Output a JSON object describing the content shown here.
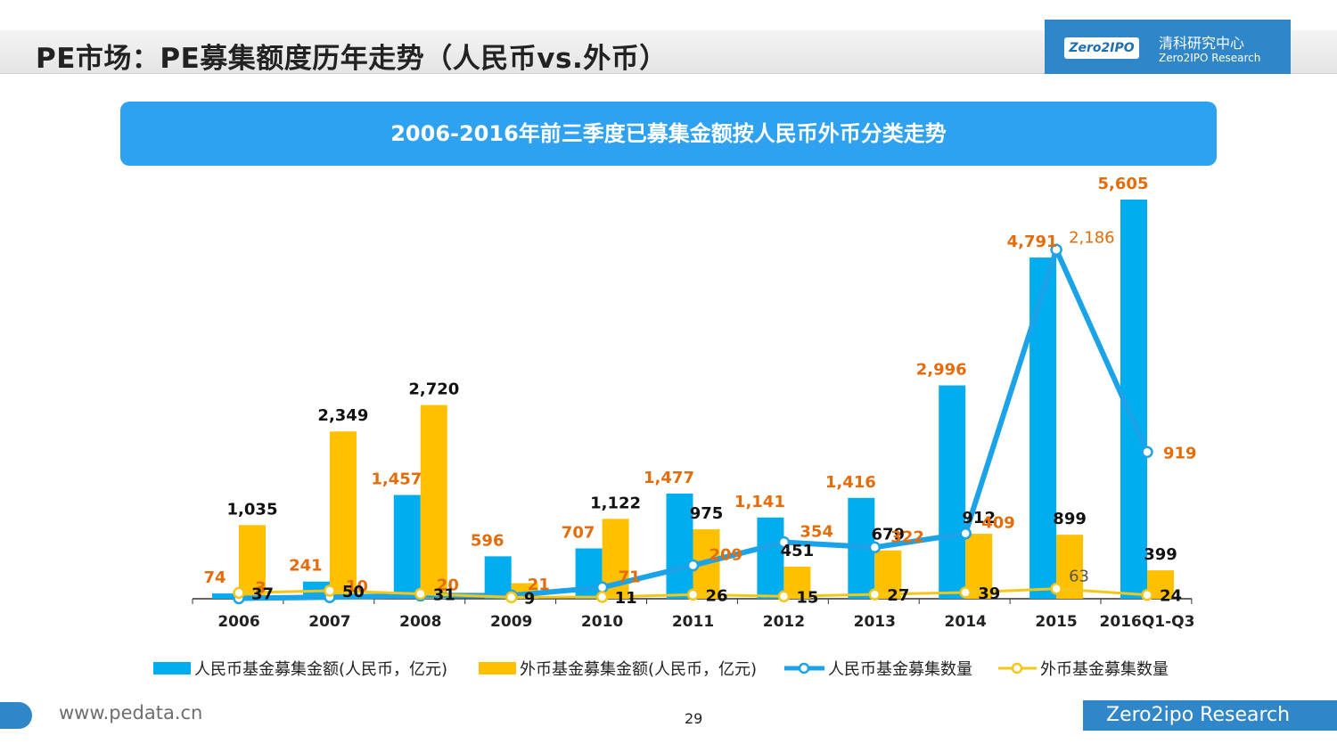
{
  "header": {
    "title": "PE市场：PE募集额度历年走势（人民币vs.外币）",
    "logo_badge": "Zero2IPO",
    "logo_cn": "清科研究中心",
    "logo_en": "Zero2IPO Research"
  },
  "footer": {
    "url": "www.pedata.cn",
    "page_number": "29",
    "brand": "Zero2ipo Research"
  },
  "colors": {
    "rmb": "#00aeef",
    "fx": "#ffc000",
    "fx_label": "#e46c0a",
    "rmb_count_line": "#1aa3e8",
    "fx_count_line": "#f5c518",
    "axis": "#333333",
    "label_dark": "#111111"
  },
  "chart_data": {
    "type": "bar",
    "title": "2006-2016年前三季度已募集金额按人民币外币分类走势",
    "categories": [
      "2006",
      "2007",
      "2008",
      "2009",
      "2010",
      "2011",
      "2012",
      "2013",
      "2014",
      "2015",
      "2016Q1-Q3"
    ],
    "series": [
      {
        "name": "人民币基金募集金额(人民币，亿元)",
        "kind": "bar",
        "values": [
          74,
          241,
          1457,
          596,
          707,
          1477,
          1141,
          1416,
          2996,
          4791,
          5605
        ]
      },
      {
        "name": "外币基金募集金额(人民币，亿元)",
        "kind": "bar",
        "values": [
          1035,
          2349,
          2720,
          219,
          1122,
          975,
          451,
          679,
          912,
          899,
          399
        ]
      },
      {
        "name": "人民币基金募集数量",
        "kind": "line",
        "values": [
          3,
          10,
          20,
          21,
          71,
          209,
          354,
          322,
          409,
          2186,
          919
        ]
      },
      {
        "name": "外币基金募集数量",
        "kind": "line",
        "values": [
          37,
          50,
          31,
          9,
          11,
          26,
          15,
          27,
          39,
          63,
          24
        ]
      }
    ],
    "rmb_count_labels": [
      "3",
      "10",
      "20",
      "21",
      "71",
      "209",
      "354",
      "322",
      "409",
      "2,186",
      "919"
    ],
    "fx_count_labels": [
      "37",
      "50",
      "31",
      "9",
      "11",
      "26",
      "15",
      "27",
      "39",
      "63",
      "24"
    ],
    "rmb_amount_labels": [
      "74",
      "241",
      "1,457",
      "596",
      "707",
      "1,477",
      "1,141",
      "1,416",
      "2,996",
      "4,791",
      "5,605"
    ],
    "fx_amount_labels": [
      "1,035",
      "2,349",
      "2,720",
      "",
      "1,122",
      "975",
      "451",
      "679",
      "912",
      "899",
      "399"
    ],
    "amount_ylim": [
      0,
      5605
    ],
    "count_ylim": [
      0,
      2500
    ],
    "grid": false,
    "legend_position": "bottom"
  }
}
